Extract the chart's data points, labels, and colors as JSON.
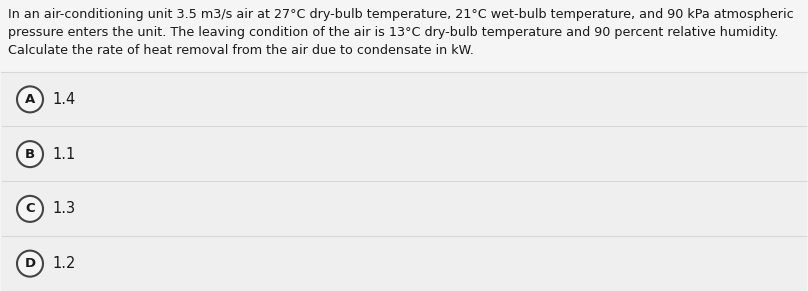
{
  "question_lines": [
    "In an air-conditioning unit 3.5 m3/s air at 27°C dry-bulb temperature, 21°C wet-bulb temperature, and 90 kPa atmospheric",
    "pressure enters the unit. The leaving condition of the air is 13°C dry-bulb temperature and 90 percent relative humidity.",
    "Calculate the rate of heat removal from the air due to condensate in kW."
  ],
  "options": [
    {
      "label": "A",
      "text": "1.4"
    },
    {
      "label": "B",
      "text": "1.1"
    },
    {
      "label": "C",
      "text": "1.3"
    },
    {
      "label": "D",
      "text": "1.2"
    }
  ],
  "bg_color": "#f5f5f5",
  "option_bg_color": "#efefef",
  "separator_color": "#d8d8d8",
  "circle_edge_color": "#444444",
  "circle_face_color": "#f5f5f5",
  "text_color": "#1a1a1a",
  "font_size_question": 9.2,
  "font_size_option": 10.5,
  "font_size_label": 9.5
}
